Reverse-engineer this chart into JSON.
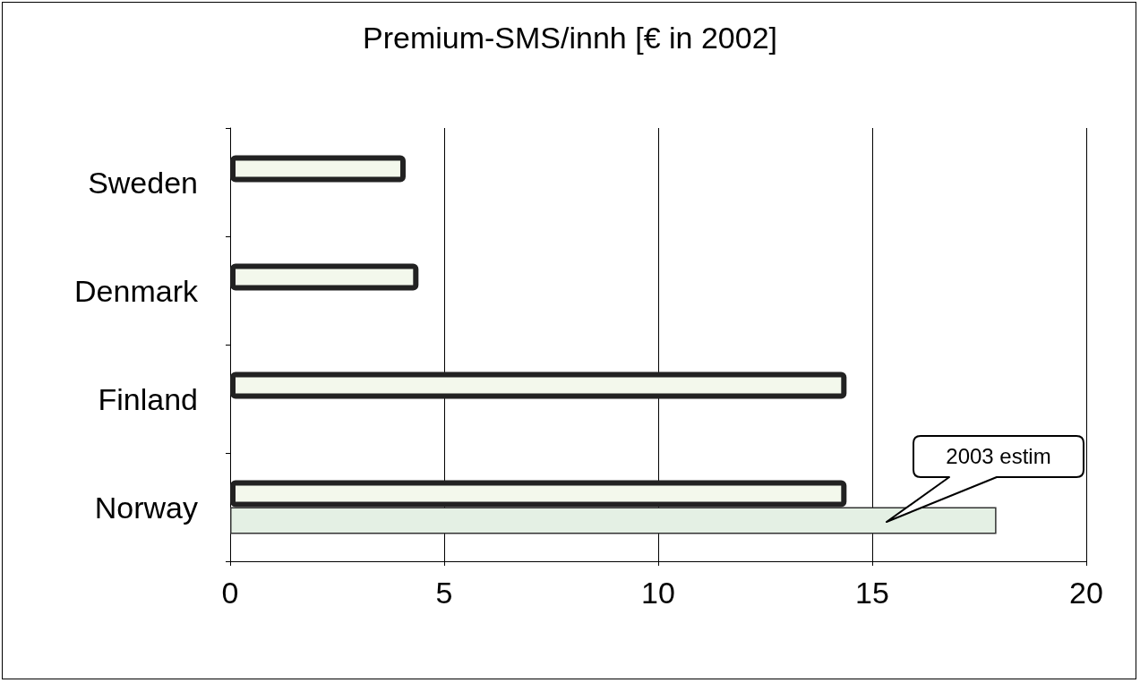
{
  "chart_data": {
    "type": "bar",
    "orientation": "horizontal",
    "title": "Premium-SMS/innh [€ in 2002]",
    "categories": [
      "Sweden",
      "Denmark",
      "Finland",
      "Norway"
    ],
    "series": [
      {
        "color": "#f3f8ec",
        "values": [
          4.1,
          4.4,
          14.4,
          14.4
        ]
      },
      {
        "color": "#e4f0e4",
        "values": [
          null,
          null,
          null,
          17.9
        ]
      }
    ],
    "xlim": [
      0,
      20
    ],
    "xticks": [
      0,
      5,
      10,
      15,
      20
    ],
    "grid": "x",
    "annotations": [
      "2003 estim"
    ]
  }
}
